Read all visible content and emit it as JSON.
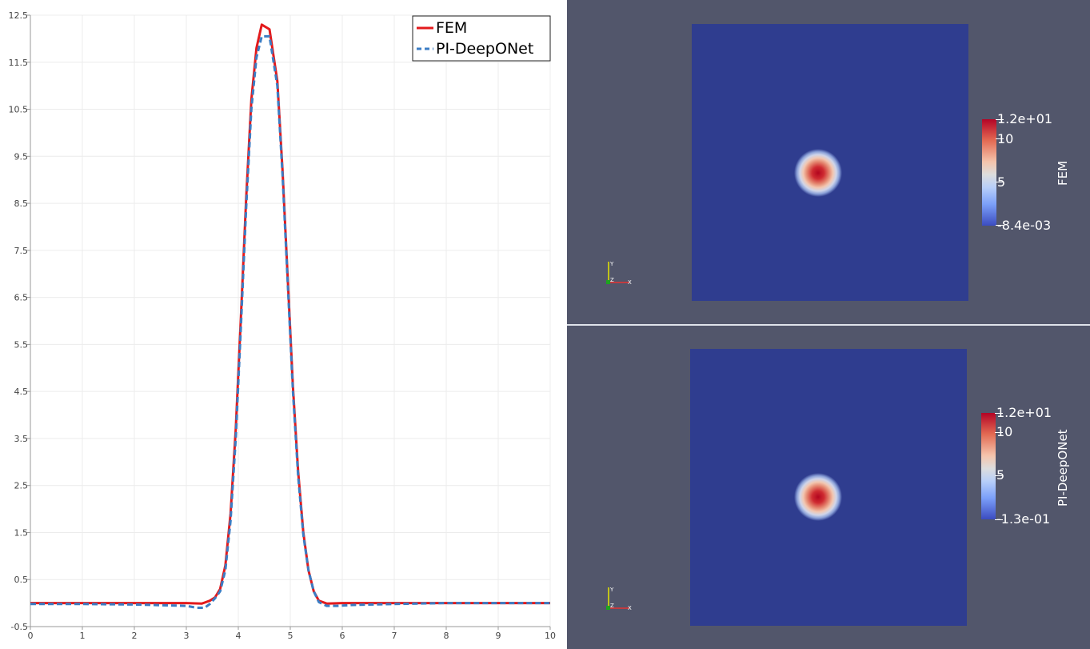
{
  "chart_data": {
    "type": "line",
    "title": "",
    "xlabel": "",
    "ylabel": "",
    "xlim": [
      0,
      10
    ],
    "ylim": [
      -0.5,
      12.5
    ],
    "xticks": [
      "0",
      "1",
      "2",
      "3",
      "4",
      "5",
      "6",
      "7",
      "8",
      "9",
      "10"
    ],
    "yticks": [
      "-0.5",
      "0.5",
      "1.5",
      "2.5",
      "3.5",
      "4.5",
      "5.5",
      "6.5",
      "7.5",
      "8.5",
      "9.5",
      "10.5",
      "11.5",
      "12.5"
    ],
    "grid": true,
    "legend_position": "top-right",
    "series": [
      {
        "name": "FEM",
        "color": "#e31a1c",
        "dash": "solid",
        "points": [
          [
            0,
            0
          ],
          [
            1,
            0
          ],
          [
            2,
            0
          ],
          [
            3,
            0
          ],
          [
            3.3,
            -0.01
          ],
          [
            3.45,
            0.05
          ],
          [
            3.55,
            0.12
          ],
          [
            3.65,
            0.3
          ],
          [
            3.75,
            0.8
          ],
          [
            3.85,
            1.9
          ],
          [
            3.95,
            3.7
          ],
          [
            4.05,
            6.1
          ],
          [
            4.15,
            8.6
          ],
          [
            4.25,
            10.7
          ],
          [
            4.35,
            11.8
          ],
          [
            4.45,
            12.3
          ],
          [
            4.6,
            12.2
          ],
          [
            4.75,
            11.1
          ],
          [
            4.85,
            9.2
          ],
          [
            4.95,
            6.9
          ],
          [
            5.05,
            4.6
          ],
          [
            5.15,
            2.8
          ],
          [
            5.25,
            1.5
          ],
          [
            5.35,
            0.7
          ],
          [
            5.45,
            0.25
          ],
          [
            5.55,
            0.05
          ],
          [
            5.7,
            -0.01
          ],
          [
            6,
            0
          ],
          [
            7,
            0
          ],
          [
            8,
            0
          ],
          [
            9,
            0
          ],
          [
            10,
            0
          ]
        ]
      },
      {
        "name": "PI-DeepONet",
        "color": "#3b7dc4",
        "dash": "dashed",
        "points": [
          [
            0,
            -0.02
          ],
          [
            1,
            -0.02
          ],
          [
            2,
            -0.03
          ],
          [
            3,
            -0.06
          ],
          [
            3.2,
            -0.1
          ],
          [
            3.35,
            -0.1
          ],
          [
            3.45,
            -0.02
          ],
          [
            3.55,
            0.1
          ],
          [
            3.65,
            0.25
          ],
          [
            3.75,
            0.7
          ],
          [
            3.85,
            1.75
          ],
          [
            3.95,
            3.5
          ],
          [
            4.05,
            5.9
          ],
          [
            4.15,
            8.4
          ],
          [
            4.25,
            10.5
          ],
          [
            4.35,
            11.6
          ],
          [
            4.45,
            12.05
          ],
          [
            4.6,
            12.05
          ],
          [
            4.75,
            11.0
          ],
          [
            4.85,
            9.1
          ],
          [
            4.95,
            6.8
          ],
          [
            5.05,
            4.5
          ],
          [
            5.15,
            2.7
          ],
          [
            5.25,
            1.45
          ],
          [
            5.35,
            0.7
          ],
          [
            5.45,
            0.25
          ],
          [
            5.55,
            0.02
          ],
          [
            5.7,
            -0.06
          ],
          [
            5.9,
            -0.06
          ],
          [
            6.2,
            -0.04
          ],
          [
            7,
            -0.02
          ],
          [
            8,
            0
          ],
          [
            9,
            0
          ],
          [
            10,
            0
          ]
        ]
      }
    ]
  },
  "views": {
    "top": {
      "colorbar_max": "1.2e+01",
      "colorbar_mid_high": "10",
      "colorbar_mid_low": "5",
      "colorbar_min": "-8.4e-03",
      "field_name": "FEM"
    },
    "bottom": {
      "colorbar_max": "1.2e+01",
      "colorbar_mid_high": "10",
      "colorbar_mid_low": "5",
      "colorbar_min": "-1.3e-01",
      "field_name": "PI-DeepONet"
    }
  },
  "colors": {
    "view_background": "#52566b",
    "domain_fill": "#2f3d8f"
  }
}
